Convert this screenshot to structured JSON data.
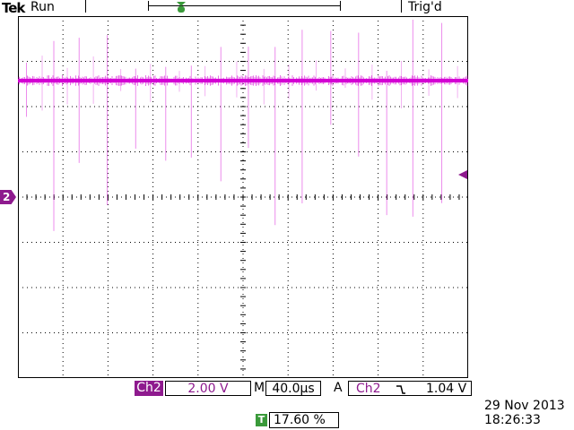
{
  "header": {
    "brand": "Tek",
    "run_status": "Run",
    "trigger_status": "Trig'd"
  },
  "channel": {
    "number_marker": "2",
    "tag": "Ch2",
    "volts_per_div": "2.00 V",
    "color": "#d400d4"
  },
  "timebase": {
    "mode_label": "M",
    "time_per_div": "40.0µs"
  },
  "trigger": {
    "mode_label": "A",
    "source": "Ch2",
    "slope_symbol": "⌐",
    "level": "1.04 V",
    "marker_label": "T"
  },
  "horizontal_position": {
    "badge": "T",
    "value": "17.60 %"
  },
  "timestamp": {
    "date": "29 Nov 2013",
    "time": "18:26:33"
  }
}
